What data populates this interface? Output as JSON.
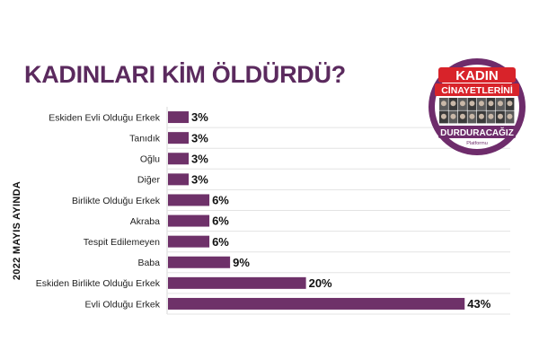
{
  "chart_data": {
    "type": "bar",
    "orientation": "horizontal",
    "title": "KADINLARI KİM ÖLDÜRDÜ?",
    "ylabel": "2022 MAYIS AYINDA",
    "xlabel": "",
    "categories": [
      "Eskiden Evli Olduğu Erkek",
      "Tanıdık",
      "Oğlu",
      "Diğer",
      "Birlikte Olduğu Erkek",
      "Akraba",
      "Tespit Edilemeyen",
      "Baba",
      "Eskiden Birlikte Olduğu Erkek",
      "Evli Olduğu Erkek"
    ],
    "values": [
      3,
      3,
      3,
      3,
      6,
      6,
      6,
      9,
      20,
      43
    ],
    "value_labels": [
      "3%",
      "3%",
      "3%",
      "3%",
      "6%",
      "6%",
      "6%",
      "9%",
      "20%",
      "43%"
    ],
    "xlim": [
      0,
      50
    ],
    "grid": true,
    "bar_color": "#6e3169"
  },
  "logo": {
    "line1": "KADIN",
    "line2": "CİNAYETLERİNİ",
    "line3": "DURDURACAĞIZ",
    "line4": "Platformu",
    "colors": {
      "ring": "#6e2c6b",
      "red": "#d8232a",
      "photo": "#2a2a2a"
    }
  }
}
